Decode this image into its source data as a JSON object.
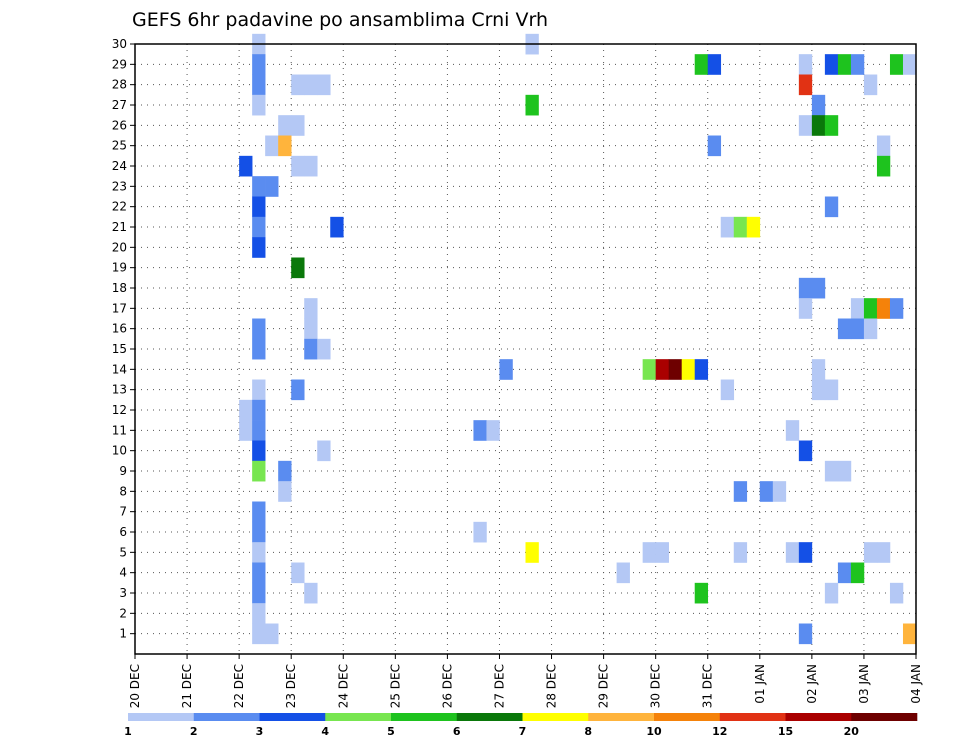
{
  "chart_data": {
    "type": "heatmap",
    "title": "GEFS 6hr padavine po ansamblima Crni Vrh",
    "xlabel": "",
    "ylabel": "",
    "x_tick_labels": [
      "20 DEC",
      "21 DEC",
      "22 DEC",
      "23 DEC",
      "24 DEC",
      "25 DEC",
      "26 DEC",
      "27 DEC",
      "28 DEC",
      "29 DEC",
      "30 DEC",
      "31 DEC",
      "01 JAN",
      "02 JAN",
      "03 JAN",
      "04 JAN"
    ],
    "xlim_days": [
      0,
      15
    ],
    "y_tick_labels": [
      "1",
      "2",
      "3",
      "4",
      "5",
      "6",
      "7",
      "8",
      "9",
      "10",
      "11",
      "12",
      "13",
      "14",
      "15",
      "16",
      "17",
      "18",
      "19",
      "20",
      "21",
      "22",
      "23",
      "24",
      "25",
      "26",
      "27",
      "28",
      "29",
      "30"
    ],
    "ylim": [
      0,
      30
    ],
    "grid": true,
    "colorbar": {
      "labels": [
        "1",
        "2",
        "3",
        "4",
        "5",
        "6",
        "7",
        "8",
        "10",
        "12",
        "15",
        "20"
      ],
      "colors": [
        "#b4c8f5",
        "#5a8cf0",
        "#1450e6",
        "#78e650",
        "#1ec31e",
        "#0a780a",
        "#ffff00",
        "#ffb43c",
        "#f5820a",
        "#e13214",
        "#aa0000",
        "#6e0000"
      ]
    },
    "cells_desc": "each cell: [day offset from 20 DEC (start of 6h step), member, color class 1-12]",
    "cells": [
      [
        2.25,
        30,
        1
      ],
      [
        7.5,
        30,
        1
      ],
      [
        2.25,
        29,
        2
      ],
      [
        10.75,
        29,
        5
      ],
      [
        11.0,
        29,
        3
      ],
      [
        12.75,
        29,
        1
      ],
      [
        13.25,
        29,
        3
      ],
      [
        13.5,
        29,
        5
      ],
      [
        13.75,
        29,
        2
      ],
      [
        14.5,
        29,
        5
      ],
      [
        14.75,
        29,
        1
      ],
      [
        2.25,
        28,
        2
      ],
      [
        3.0,
        28,
        1
      ],
      [
        3.25,
        28,
        1
      ],
      [
        3.5,
        28,
        1
      ],
      [
        12.75,
        28,
        10
      ],
      [
        14.0,
        28,
        1
      ],
      [
        2.25,
        27,
        1
      ],
      [
        7.5,
        27,
        5
      ],
      [
        13.0,
        27,
        2
      ],
      [
        2.75,
        26,
        1
      ],
      [
        3.0,
        26,
        1
      ],
      [
        12.75,
        26,
        1
      ],
      [
        13.0,
        26,
        6
      ],
      [
        13.25,
        26,
        5
      ],
      [
        2.5,
        25,
        1
      ],
      [
        2.75,
        25,
        8
      ],
      [
        11.0,
        25,
        2
      ],
      [
        14.25,
        25,
        1
      ],
      [
        2.0,
        24,
        3
      ],
      [
        3.0,
        24,
        1
      ],
      [
        3.25,
        24,
        1
      ],
      [
        14.25,
        24,
        5
      ],
      [
        2.25,
        23,
        2
      ],
      [
        2.5,
        23,
        2
      ],
      [
        2.25,
        22,
        3
      ],
      [
        13.25,
        22,
        2
      ],
      [
        2.25,
        21,
        2
      ],
      [
        3.75,
        21,
        3
      ],
      [
        11.25,
        21,
        1
      ],
      [
        11.5,
        21,
        4
      ],
      [
        11.75,
        21,
        7
      ],
      [
        2.25,
        20,
        3
      ],
      [
        3.0,
        19,
        6
      ],
      [
        12.75,
        18,
        2
      ],
      [
        13.0,
        18,
        2
      ],
      [
        3.25,
        17,
        1
      ],
      [
        12.75,
        17,
        1
      ],
      [
        13.75,
        17,
        1
      ],
      [
        14.0,
        17,
        5
      ],
      [
        14.25,
        17,
        9
      ],
      [
        14.5,
        17,
        2
      ],
      [
        2.25,
        16,
        2
      ],
      [
        3.25,
        16,
        1
      ],
      [
        13.5,
        16,
        2
      ],
      [
        13.75,
        16,
        2
      ],
      [
        14.0,
        16,
        1
      ],
      [
        2.25,
        15,
        2
      ],
      [
        3.25,
        15,
        2
      ],
      [
        3.5,
        15,
        1
      ],
      [
        7.0,
        14,
        2
      ],
      [
        9.75,
        14,
        4
      ],
      [
        10.0,
        14,
        11
      ],
      [
        10.25,
        14,
        12
      ],
      [
        10.5,
        14,
        7
      ],
      [
        10.75,
        14,
        3
      ],
      [
        13.0,
        14,
        1
      ],
      [
        2.25,
        13,
        1
      ],
      [
        3.0,
        13,
        2
      ],
      [
        11.25,
        13,
        1
      ],
      [
        13.0,
        13,
        1
      ],
      [
        13.25,
        13,
        1
      ],
      [
        2.0,
        12,
        1
      ],
      [
        2.25,
        12,
        2
      ],
      [
        2.0,
        11,
        1
      ],
      [
        2.25,
        11,
        2
      ],
      [
        6.5,
        11,
        2
      ],
      [
        6.75,
        11,
        1
      ],
      [
        12.5,
        11,
        1
      ],
      [
        2.25,
        10,
        3
      ],
      [
        3.5,
        10,
        1
      ],
      [
        12.75,
        10,
        3
      ],
      [
        2.25,
        9,
        4
      ],
      [
        2.75,
        9,
        2
      ],
      [
        13.25,
        9,
        1
      ],
      [
        13.5,
        9,
        1
      ],
      [
        2.75,
        8,
        1
      ],
      [
        11.5,
        8,
        2
      ],
      [
        12.0,
        8,
        2
      ],
      [
        12.25,
        8,
        1
      ],
      [
        2.25,
        7,
        2
      ],
      [
        2.25,
        6,
        2
      ],
      [
        6.5,
        6,
        1
      ],
      [
        2.25,
        5,
        1
      ],
      [
        7.5,
        5,
        7
      ],
      [
        9.75,
        5,
        1
      ],
      [
        10.0,
        5,
        1
      ],
      [
        11.5,
        5,
        1
      ],
      [
        12.5,
        5,
        1
      ],
      [
        12.75,
        5,
        3
      ],
      [
        14.0,
        5,
        1
      ],
      [
        14.25,
        5,
        1
      ],
      [
        2.25,
        4,
        2
      ],
      [
        3.0,
        4,
        1
      ],
      [
        9.25,
        4,
        1
      ],
      [
        13.5,
        4,
        2
      ],
      [
        13.75,
        4,
        5
      ],
      [
        2.25,
        3,
        2
      ],
      [
        3.25,
        3,
        1
      ],
      [
        10.75,
        3,
        5
      ],
      [
        13.25,
        3,
        1
      ],
      [
        14.5,
        3,
        1
      ],
      [
        2.25,
        2,
        1
      ],
      [
        2.25,
        1,
        1
      ],
      [
        2.5,
        1,
        1
      ],
      [
        12.75,
        1,
        2
      ],
      [
        14.75,
        1,
        8
      ]
    ]
  }
}
